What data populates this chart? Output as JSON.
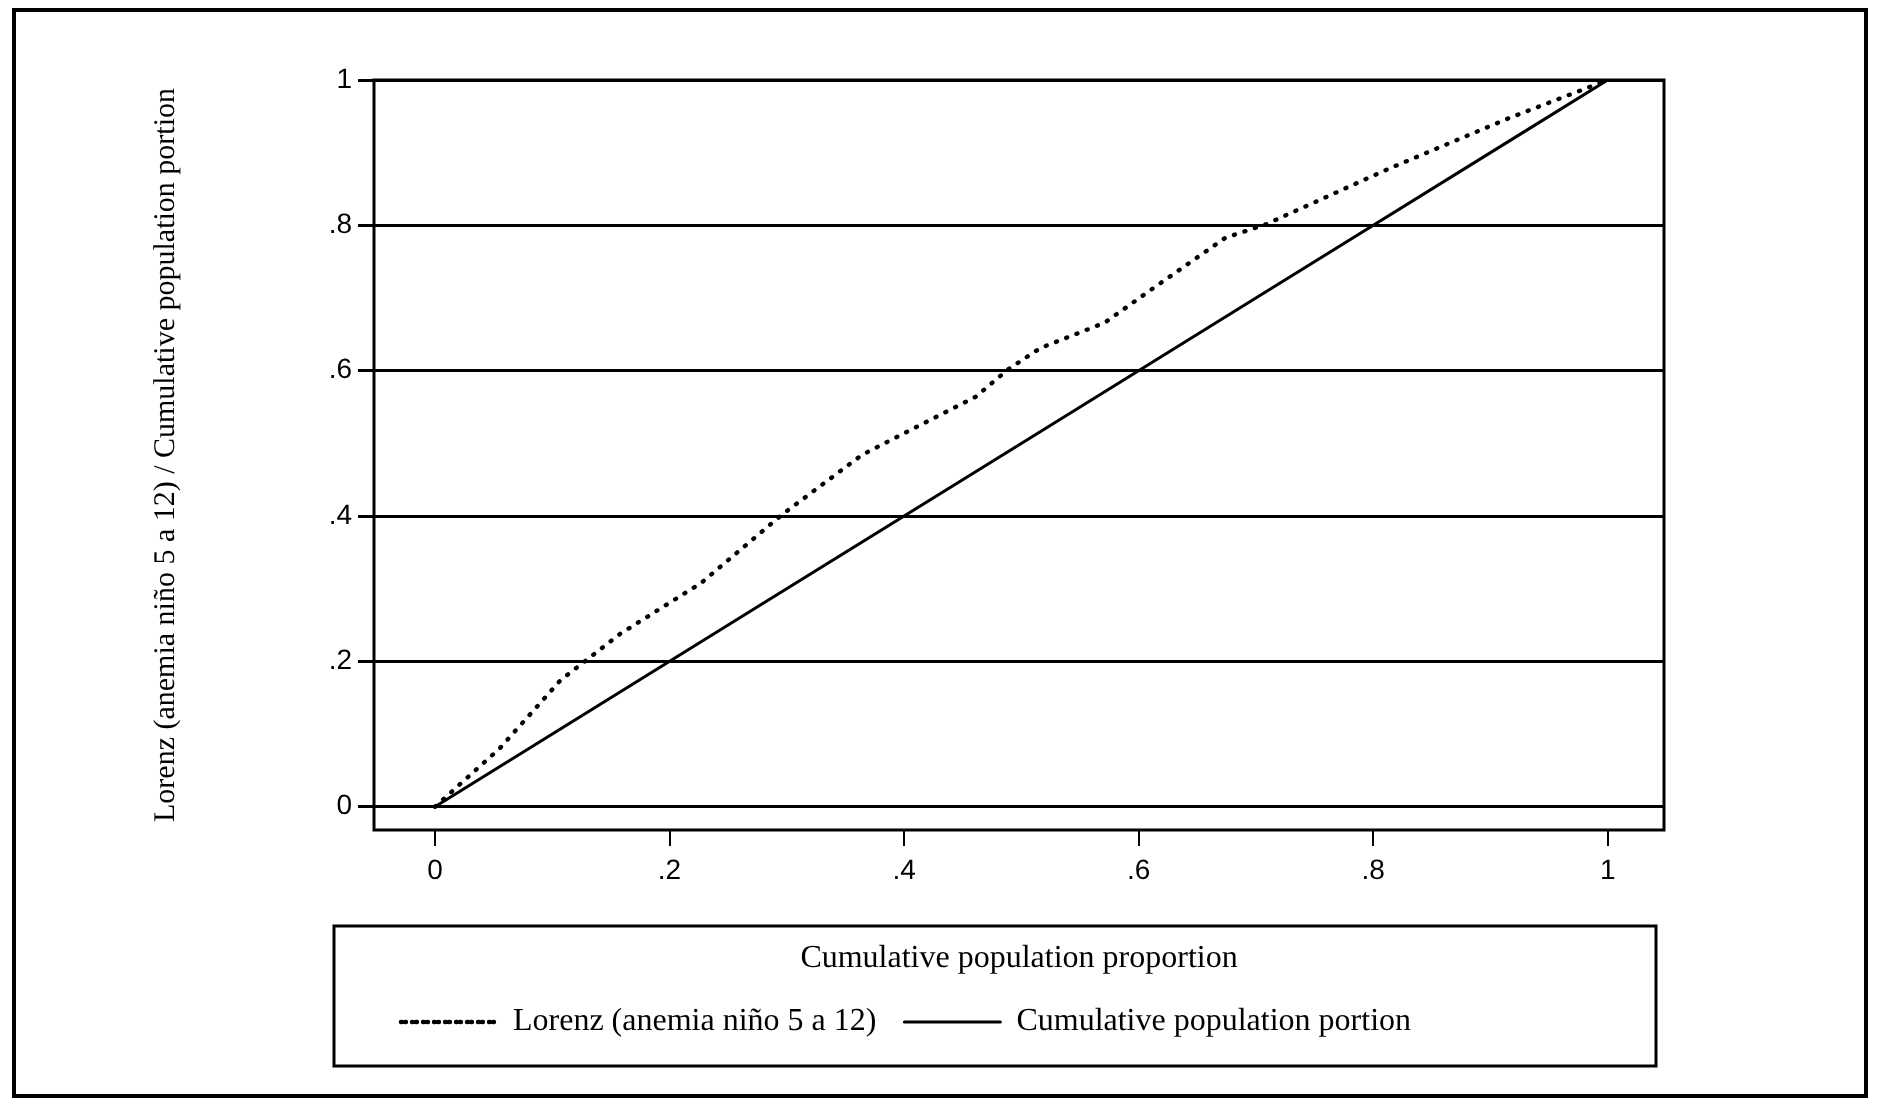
{
  "chart_data": {
    "type": "line",
    "xlabel": "Cumulative population proportion",
    "ylabel": "Lorenz (anemia niño 5 a 12) / Cumulative population portion",
    "xlim": [
      -0.052,
      1.048
    ],
    "ylim": [
      -0.032,
      1.0
    ],
    "xticks": [
      {
        "value": 0,
        "label": "0"
      },
      {
        "value": 0.2,
        "label": ".2"
      },
      {
        "value": 0.4,
        "label": ".4"
      },
      {
        "value": 0.6,
        "label": ".6"
      },
      {
        "value": 0.8,
        "label": ".8"
      },
      {
        "value": 1,
        "label": "1"
      }
    ],
    "yticks": [
      {
        "value": 0,
        "label": "0"
      },
      {
        "value": 0.2,
        "label": ".2"
      },
      {
        "value": 0.4,
        "label": ".4"
      },
      {
        "value": 0.6,
        "label": ".6"
      },
      {
        "value": 0.8,
        "label": ".8"
      },
      {
        "value": 1,
        "label": "1"
      }
    ],
    "grid": "y",
    "legend": "bottom",
    "series": [
      {
        "name": "Lorenz (anemia niño 5 a 12)",
        "color": "#000000",
        "line_style": "dotted",
        "x": [
          0,
          0.055,
          0.107,
          0.158,
          0.227,
          0.296,
          0.364,
          0.399,
          0.461,
          0.488,
          0.516,
          0.571,
          0.612,
          0.674,
          0.708,
          0.812,
          0.915,
          1
        ],
        "values": [
          0,
          0.08,
          0.174,
          0.238,
          0.308,
          0.402,
          0.484,
          0.513,
          0.564,
          0.601,
          0.631,
          0.666,
          0.713,
          0.783,
          0.801,
          0.877,
          0.947,
          1
        ]
      },
      {
        "name": "Cumulative population portion",
        "color": "#000000",
        "line_style": "solid",
        "x": [
          0,
          1
        ],
        "values": [
          0,
          1
        ]
      }
    ]
  }
}
